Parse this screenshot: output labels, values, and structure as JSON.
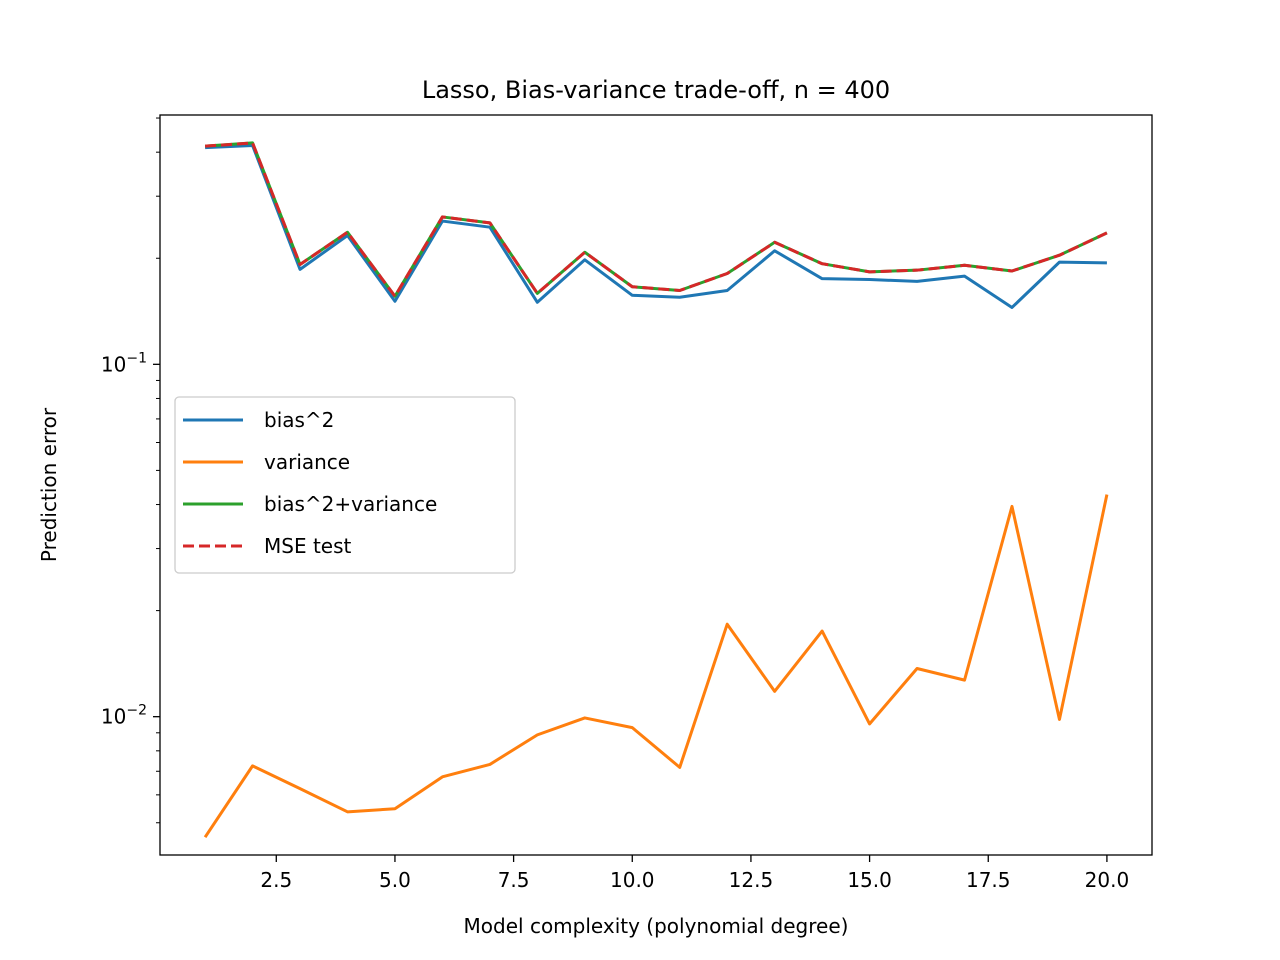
{
  "chart_data": {
    "type": "line",
    "title": "Lasso, Bias-variance trade-off, n = 400",
    "xlabel": "Model complexity (polynomial degree)",
    "ylabel": "Prediction error",
    "yscale": "log",
    "xlim": [
      0.05,
      20.95
    ],
    "ylim": [
      0.00405,
      0.51
    ],
    "x": [
      1,
      2,
      3,
      4,
      5,
      6,
      7,
      8,
      9,
      10,
      11,
      12,
      13,
      14,
      15,
      16,
      17,
      18,
      19,
      20
    ],
    "xticks": [
      {
        "value": 2.5,
        "label": "2.5"
      },
      {
        "value": 5.0,
        "label": "5.0"
      },
      {
        "value": 7.5,
        "label": "7.5"
      },
      {
        "value": 10.0,
        "label": "10.0"
      },
      {
        "value": 12.5,
        "label": "12.5"
      },
      {
        "value": 15.0,
        "label": "15.0"
      },
      {
        "value": 17.5,
        "label": "17.5"
      },
      {
        "value": 20.0,
        "label": "20.0"
      }
    ],
    "yticks": [
      {
        "value": 0.1,
        "base": "10",
        "exp": "−1"
      },
      {
        "value": 0.01,
        "base": "10",
        "exp": "−2"
      }
    ],
    "series": [
      {
        "name": "bias^2",
        "color": "#1f77b4",
        "dash": "solid",
        "values": [
          0.412,
          0.418,
          0.186,
          0.232,
          0.151,
          0.255,
          0.245,
          0.15,
          0.198,
          0.157,
          0.155,
          0.162,
          0.21,
          0.175,
          0.174,
          0.172,
          0.178,
          0.145,
          0.195,
          0.194
        ]
      },
      {
        "name": "variance",
        "color": "#ff7f0e",
        "dash": "solid",
        "values": [
          0.00455,
          0.00725,
          0.00625,
          0.00537,
          0.00548,
          0.00675,
          0.00732,
          0.00888,
          0.00992,
          0.00931,
          0.00718,
          0.0183,
          0.0118,
          0.0175,
          0.00954,
          0.0137,
          0.0127,
          0.0395,
          0.00982,
          0.0427
        ]
      },
      {
        "name": "bias^2+variance",
        "color": "#2ca02c",
        "dash": "solid",
        "values": [
          0.416,
          0.425,
          0.192,
          0.237,
          0.156,
          0.262,
          0.252,
          0.159,
          0.208,
          0.166,
          0.162,
          0.181,
          0.222,
          0.193,
          0.183,
          0.185,
          0.191,
          0.184,
          0.204,
          0.236
        ]
      },
      {
        "name": "MSE test",
        "color": "#d62728",
        "dash": "dashed",
        "values": [
          0.416,
          0.425,
          0.192,
          0.237,
          0.156,
          0.262,
          0.252,
          0.159,
          0.208,
          0.166,
          0.162,
          0.181,
          0.222,
          0.193,
          0.183,
          0.185,
          0.191,
          0.184,
          0.204,
          0.236
        ]
      }
    ],
    "grid": false,
    "legend_position": "center-left"
  }
}
